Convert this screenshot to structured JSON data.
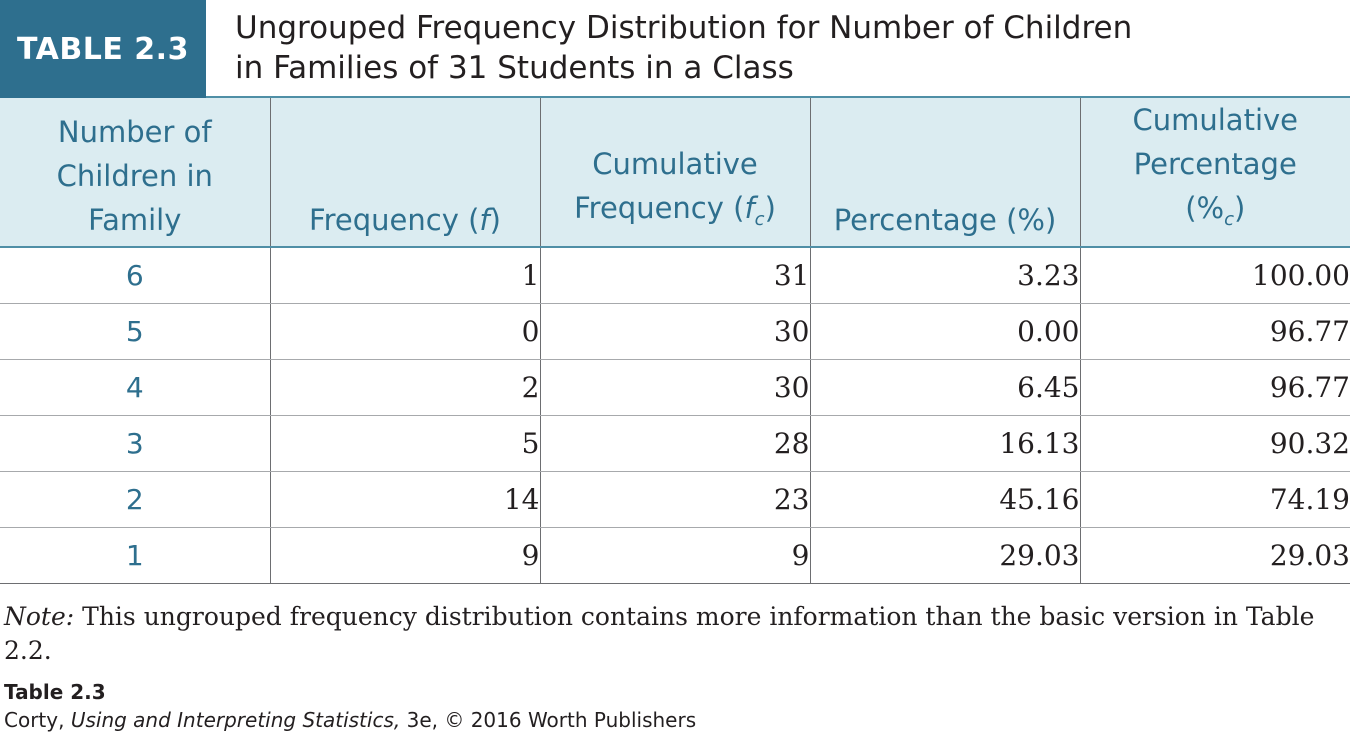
{
  "table_label": "TABLE 2.3",
  "title_line1": "Ungrouped Frequency Distribution for Number of Children",
  "title_line2": "in Families of 31 Students in a Class",
  "headers": {
    "col1": [
      "Number of",
      "Children in",
      "Family"
    ],
    "col2": {
      "text": "Frequency (",
      "sym": "f",
      "close": ")"
    },
    "col3": {
      "line1": "Cumulative",
      "text": "Frequency (",
      "sym": "f",
      "sub": "c",
      "close": ")"
    },
    "col4": "Percentage (%)",
    "col5": {
      "line1": "Cumulative",
      "line2": "Percentage",
      "text": "(%",
      "sub": "c",
      "close": ")"
    }
  },
  "rows": [
    {
      "children": "6",
      "f": "1",
      "fc": "31",
      "pct": "3.23",
      "cpct": "100.00"
    },
    {
      "children": "5",
      "f": "0",
      "fc": "30",
      "pct": "0.00",
      "cpct": "96.77"
    },
    {
      "children": "4",
      "f": "2",
      "fc": "30",
      "pct": "6.45",
      "cpct": "96.77"
    },
    {
      "children": "3",
      "f": "5",
      "fc": "28",
      "pct": "16.13",
      "cpct": "90.32"
    },
    {
      "children": "2",
      "f": "14",
      "fc": "23",
      "pct": "45.16",
      "cpct": "74.19"
    },
    {
      "children": "1",
      "f": "9",
      "fc": "9",
      "pct": "29.03",
      "cpct": "29.03"
    }
  ],
  "note": {
    "label": "Note:",
    "text": " This ungrouped frequency distribution contains more information than the basic version in Table 2.2."
  },
  "credit": {
    "title": "Table 2.3",
    "author": "Corty, ",
    "book": "Using and Interpreting Statistics,",
    "rest": " 3e, © 2016 Worth Publishers"
  },
  "colors": {
    "accent": "#2e6f8e",
    "header_bg": "#dbecf1"
  }
}
